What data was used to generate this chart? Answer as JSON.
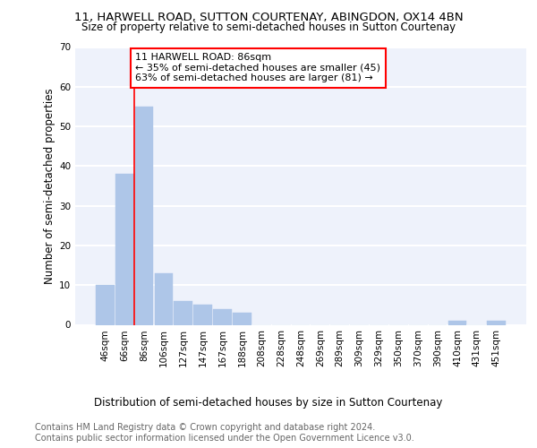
{
  "title_line1": "11, HARWELL ROAD, SUTTON COURTENAY, ABINGDON, OX14 4BN",
  "title_line2": "Size of property relative to semi-detached houses in Sutton Courtenay",
  "xlabel": "Distribution of semi-detached houses by size in Sutton Courtenay",
  "ylabel": "Number of semi-detached properties",
  "annotation_line1": "11 HARWELL ROAD: 86sqm",
  "annotation_line2": "← 35% of semi-detached houses are smaller (45)",
  "annotation_line3": "63% of semi-detached houses are larger (81) →",
  "footer_line1": "Contains HM Land Registry data © Crown copyright and database right 2024.",
  "footer_line2": "Contains public sector information licensed under the Open Government Licence v3.0.",
  "bar_labels": [
    "46sqm",
    "66sqm",
    "86sqm",
    "106sqm",
    "127sqm",
    "147sqm",
    "167sqm",
    "188sqm",
    "208sqm",
    "228sqm",
    "248sqm",
    "269sqm",
    "289sqm",
    "309sqm",
    "329sqm",
    "350sqm",
    "370sqm",
    "390sqm",
    "410sqm",
    "431sqm",
    "451sqm"
  ],
  "bar_values": [
    10,
    38,
    55,
    13,
    6,
    5,
    4,
    3,
    0,
    0,
    0,
    0,
    0,
    0,
    0,
    0,
    0,
    0,
    1,
    0,
    1
  ],
  "bar_color": "#aec6e8",
  "vline_color": "red",
  "vline_x_index": 2,
  "ylim": [
    0,
    70
  ],
  "yticks": [
    0,
    10,
    20,
    30,
    40,
    50,
    60,
    70
  ],
  "bg_color": "#eef2fb",
  "grid_color": "white",
  "annotation_box_edge": "red",
  "title_fontsize": 9.5,
  "subtitle_fontsize": 8.5,
  "axis_label_fontsize": 8.5,
  "tick_fontsize": 7.5,
  "annotation_fontsize": 8,
  "footer_fontsize": 7
}
